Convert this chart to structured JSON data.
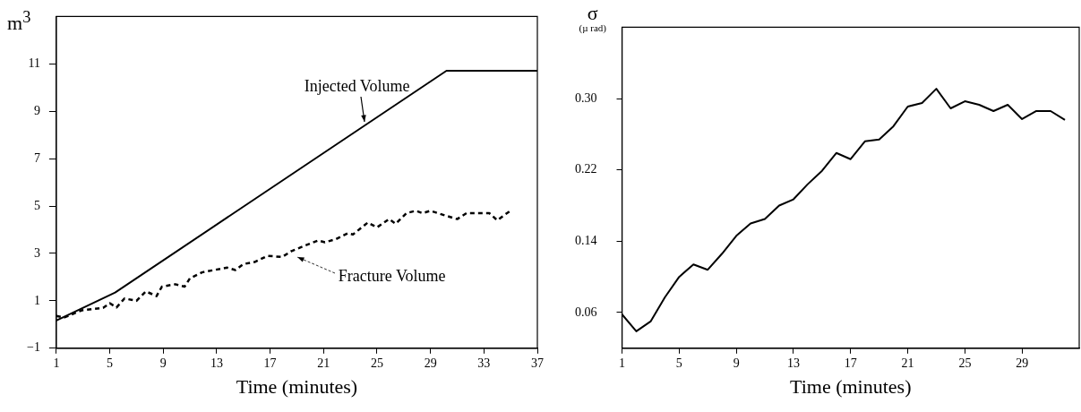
{
  "chart_data": [
    {
      "type": "line",
      "xlabel": "Time (minutes)",
      "ylabel": "m$^{3}$",
      "xlim": [
        1,
        37
      ],
      "xticks": [
        1,
        5,
        9,
        13,
        17,
        21,
        25,
        29,
        33,
        37
      ],
      "ylim": [
        -1,
        13
      ],
      "yticks": [
        -1,
        1,
        3,
        5,
        7,
        9,
        11
      ],
      "marker": "none",
      "series": [
        {
          "name": "Injected Volume",
          "color": "#000000",
          "line_style": "solid",
          "x": [
            1,
            5.4,
            30.2,
            37
          ],
          "values": [
            0.17,
            1.35,
            10.71,
            10.71
          ]
        },
        {
          "name": "Fracture Volume",
          "color": "#000000",
          "line_style": "dashed",
          "x": [
            1,
            1.6,
            2.9,
            4.5,
            5,
            5.5,
            6.1,
            7,
            7.7,
            8.5,
            8.9,
            9.9,
            10.6,
            11,
            11.9,
            12.8,
            13.8,
            14.4,
            15,
            15.9,
            16.8,
            17.9,
            18.6,
            19.7,
            20.6,
            21.1,
            21.9,
            22.8,
            23.2,
            24.3,
            25,
            25.9,
            26.4,
            27.2,
            27.9,
            28.4,
            29,
            30.1,
            31,
            31.7,
            32.8,
            33.4,
            34,
            34.6,
            35
          ],
          "values": [
            0.36,
            0.3,
            0.6,
            0.7,
            0.9,
            0.72,
            1.1,
            1.0,
            1.4,
            1.2,
            1.6,
            1.7,
            1.6,
            1.95,
            2.2,
            2.3,
            2.4,
            2.3,
            2.55,
            2.65,
            2.9,
            2.85,
            3.1,
            3.35,
            3.55,
            3.47,
            3.6,
            3.85,
            3.8,
            4.3,
            4.1,
            4.45,
            4.25,
            4.7,
            4.8,
            4.7,
            4.8,
            4.6,
            4.45,
            4.7,
            4.7,
            4.7,
            4.4,
            4.65,
            4.8
          ]
        }
      ]
    },
    {
      "type": "line",
      "xlabel": "Time (minutes)",
      "ylabel": "σ\n(µ rad)",
      "xlim": [
        1,
        33
      ],
      "xticks": [
        1,
        5,
        9,
        13,
        17,
        21,
        25,
        29
      ],
      "ylim": [
        0.02,
        0.38
      ],
      "yticks": [
        0.06,
        0.14,
        0.22,
        {
          "value": 0.3,
          "label": "0.30"
        }
      ],
      "marker": "none",
      "series": [
        {
          "color": "#000000",
          "line_style": "solid",
          "x": [
            1,
            2,
            3,
            4,
            5,
            6,
            7,
            8,
            9,
            10,
            11,
            12,
            13,
            14,
            15,
            16,
            17,
            18,
            19,
            20,
            21,
            22,
            23,
            24,
            25,
            26,
            27,
            28,
            29,
            30,
            31,
            32
          ],
          "values": [
            0.058,
            0.039,
            0.05,
            0.077,
            0.1,
            0.114,
            0.108,
            0.126,
            0.146,
            0.16,
            0.165,
            0.18,
            0.187,
            0.204,
            0.219,
            0.239,
            0.232,
            0.252,
            0.254,
            0.269,
            0.291,
            0.295,
            0.311,
            0.289,
            0.297,
            0.293,
            0.286,
            0.293,
            0.277,
            0.286,
            0.286,
            0.276
          ]
        }
      ]
    }
  ]
}
